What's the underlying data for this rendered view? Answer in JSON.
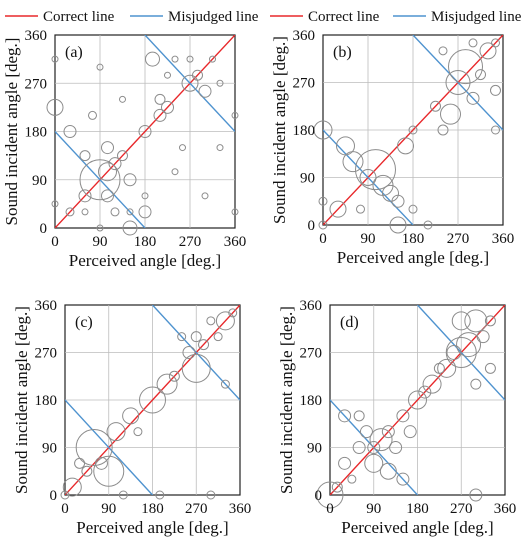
{
  "legend": {
    "correct_label": "Correct line",
    "correct_color": "#e8282b",
    "misjudged_label": "Misjudged line",
    "misjudged_color": "#4f93cf"
  },
  "chart_data": [
    {
      "panel_label": "(a)",
      "type": "scatter",
      "xlabel": "Perceived angle [deg.]",
      "ylabel": "Sound incident angle [deg.]",
      "xticks": [
        "0",
        "90",
        "180",
        "270",
        "360"
      ],
      "yticks": [
        "0",
        "90",
        "180",
        "270",
        "360"
      ],
      "xlim": [
        0,
        360
      ],
      "ylim": [
        0,
        360
      ],
      "correct_line": [
        [
          0,
          0
        ],
        [
          360,
          360
        ]
      ],
      "misjudged_lines": [
        [
          [
            0,
            180
          ],
          [
            180,
            0
          ]
        ],
        [
          [
            180,
            360
          ],
          [
            360,
            180
          ]
        ]
      ],
      "points": [
        {
          "x": 0,
          "y": 225,
          "r": 8
        },
        {
          "x": 0,
          "y": 315,
          "r": 3
        },
        {
          "x": 0,
          "y": 45,
          "r": 3
        },
        {
          "x": 30,
          "y": 180,
          "r": 6
        },
        {
          "x": 30,
          "y": 30,
          "r": 4
        },
        {
          "x": 60,
          "y": 135,
          "r": 5
        },
        {
          "x": 60,
          "y": 60,
          "r": 6
        },
        {
          "x": 75,
          "y": 210,
          "r": 4
        },
        {
          "x": 60,
          "y": 30,
          "r": 3
        },
        {
          "x": 90,
          "y": 90,
          "r": 20
        },
        {
          "x": 90,
          "y": 300,
          "r": 3
        },
        {
          "x": 90,
          "y": 0,
          "r": 3
        },
        {
          "x": 105,
          "y": 60,
          "r": 6
        },
        {
          "x": 105,
          "y": 105,
          "r": 9
        },
        {
          "x": 105,
          "y": 150,
          "r": 6
        },
        {
          "x": 120,
          "y": 120,
          "r": 6
        },
        {
          "x": 120,
          "y": 30,
          "r": 4
        },
        {
          "x": 135,
          "y": 135,
          "r": 5
        },
        {
          "x": 135,
          "y": 240,
          "r": 3
        },
        {
          "x": 150,
          "y": 90,
          "r": 6
        },
        {
          "x": 150,
          "y": 0,
          "r": 7
        },
        {
          "x": 150,
          "y": 30,
          "r": 3
        },
        {
          "x": 180,
          "y": 180,
          "r": 6
        },
        {
          "x": 180,
          "y": 60,
          "r": 3
        },
        {
          "x": 180,
          "y": 30,
          "r": 6
        },
        {
          "x": 195,
          "y": 315,
          "r": 7
        },
        {
          "x": 210,
          "y": 210,
          "r": 6
        },
        {
          "x": 210,
          "y": 240,
          "r": 5
        },
        {
          "x": 225,
          "y": 225,
          "r": 6
        },
        {
          "x": 225,
          "y": 285,
          "r": 3
        },
        {
          "x": 240,
          "y": 315,
          "r": 3
        },
        {
          "x": 240,
          "y": 105,
          "r": 3
        },
        {
          "x": 255,
          "y": 150,
          "r": 3
        },
        {
          "x": 270,
          "y": 270,
          "r": 8
        },
        {
          "x": 270,
          "y": 315,
          "r": 3
        },
        {
          "x": 285,
          "y": 285,
          "r": 5
        },
        {
          "x": 300,
          "y": 60,
          "r": 3
        },
        {
          "x": 300,
          "y": 255,
          "r": 6
        },
        {
          "x": 315,
          "y": 315,
          "r": 3
        },
        {
          "x": 330,
          "y": 150,
          "r": 3
        },
        {
          "x": 330,
          "y": 270,
          "r": 3
        },
        {
          "x": 360,
          "y": 210,
          "r": 3
        },
        {
          "x": 360,
          "y": 30,
          "r": 3
        }
      ]
    },
    {
      "panel_label": "(b)",
      "type": "scatter",
      "xlabel": "Perceived angle [deg.]",
      "ylabel": "Sound incident angle [deg.]",
      "xticks": [
        "0",
        "90",
        "180",
        "270",
        "360"
      ],
      "yticks": [
        "0",
        "90",
        "180",
        "270",
        "360"
      ],
      "xlim": [
        0,
        360
      ],
      "ylim": [
        0,
        360
      ],
      "correct_line": [
        [
          0,
          0
        ],
        [
          360,
          360
        ]
      ],
      "misjudged_lines": [
        [
          [
            0,
            180
          ],
          [
            180,
            0
          ]
        ],
        [
          [
            180,
            360
          ],
          [
            360,
            180
          ]
        ]
      ],
      "points": [
        {
          "x": 0,
          "y": 180,
          "r": 9
        },
        {
          "x": 0,
          "y": 45,
          "r": 4
        },
        {
          "x": 0,
          "y": 0,
          "r": 4
        },
        {
          "x": 30,
          "y": 30,
          "r": 8
        },
        {
          "x": 45,
          "y": 150,
          "r": 9
        },
        {
          "x": 60,
          "y": 120,
          "r": 10
        },
        {
          "x": 75,
          "y": 30,
          "r": 4
        },
        {
          "x": 90,
          "y": 90,
          "r": 8
        },
        {
          "x": 105,
          "y": 105,
          "r": 20
        },
        {
          "x": 120,
          "y": 75,
          "r": 10
        },
        {
          "x": 135,
          "y": 60,
          "r": 8
        },
        {
          "x": 150,
          "y": 45,
          "r": 6
        },
        {
          "x": 150,
          "y": 0,
          "r": 8
        },
        {
          "x": 165,
          "y": 150,
          "r": 8
        },
        {
          "x": 180,
          "y": 180,
          "r": 4
        },
        {
          "x": 180,
          "y": 30,
          "r": 4
        },
        {
          "x": 210,
          "y": 0,
          "r": 4
        },
        {
          "x": 225,
          "y": 225,
          "r": 5
        },
        {
          "x": 240,
          "y": 180,
          "r": 5
        },
        {
          "x": 240,
          "y": 330,
          "r": 4
        },
        {
          "x": 255,
          "y": 210,
          "r": 10
        },
        {
          "x": 270,
          "y": 270,
          "r": 12
        },
        {
          "x": 285,
          "y": 300,
          "r": 17
        },
        {
          "x": 300,
          "y": 240,
          "r": 6
        },
        {
          "x": 300,
          "y": 345,
          "r": 4
        },
        {
          "x": 315,
          "y": 285,
          "r": 5
        },
        {
          "x": 330,
          "y": 330,
          "r": 8
        },
        {
          "x": 345,
          "y": 255,
          "r": 5
        },
        {
          "x": 345,
          "y": 180,
          "r": 4
        },
        {
          "x": 345,
          "y": 345,
          "r": 4
        }
      ]
    },
    {
      "panel_label": "(c)",
      "type": "scatter",
      "xlabel": "Perceived angle [deg.]",
      "ylabel": "Sound incident angle [deg.]",
      "xticks": [
        "0",
        "90",
        "180",
        "270",
        "360"
      ],
      "yticks": [
        "0",
        "90",
        "180",
        "270",
        "360"
      ],
      "xlim": [
        0,
        360
      ],
      "ylim": [
        0,
        360
      ],
      "correct_line": [
        [
          0,
          0
        ],
        [
          360,
          360
        ]
      ],
      "misjudged_lines": [
        [
          [
            0,
            180
          ],
          [
            180,
            0
          ]
        ],
        [
          [
            180,
            360
          ],
          [
            360,
            180
          ]
        ]
      ],
      "points": [
        {
          "x": 0,
          "y": 0,
          "r": 4
        },
        {
          "x": 15,
          "y": 15,
          "r": 9
        },
        {
          "x": 30,
          "y": 60,
          "r": 5
        },
        {
          "x": 45,
          "y": 45,
          "r": 5
        },
        {
          "x": 60,
          "y": 90,
          "r": 18
        },
        {
          "x": 75,
          "y": 60,
          "r": 6
        },
        {
          "x": 90,
          "y": 45,
          "r": 15
        },
        {
          "x": 105,
          "y": 120,
          "r": 9
        },
        {
          "x": 120,
          "y": 0,
          "r": 4
        },
        {
          "x": 135,
          "y": 150,
          "r": 8
        },
        {
          "x": 150,
          "y": 120,
          "r": 4
        },
        {
          "x": 180,
          "y": 180,
          "r": 13
        },
        {
          "x": 195,
          "y": 0,
          "r": 4
        },
        {
          "x": 210,
          "y": 210,
          "r": 10
        },
        {
          "x": 225,
          "y": 225,
          "r": 5
        },
        {
          "x": 240,
          "y": 300,
          "r": 4
        },
        {
          "x": 255,
          "y": 270,
          "r": 6
        },
        {
          "x": 270,
          "y": 240,
          "r": 14
        },
        {
          "x": 270,
          "y": 300,
          "r": 5
        },
        {
          "x": 285,
          "y": 285,
          "r": 5
        },
        {
          "x": 300,
          "y": 330,
          "r": 4
        },
        {
          "x": 300,
          "y": 0,
          "r": 4
        },
        {
          "x": 315,
          "y": 300,
          "r": 4
        },
        {
          "x": 330,
          "y": 330,
          "r": 9
        },
        {
          "x": 345,
          "y": 345,
          "r": 4
        },
        {
          "x": 330,
          "y": 210,
          "r": 4
        }
      ]
    },
    {
      "panel_label": "(d)",
      "type": "scatter",
      "xlabel": "Perceived angle [deg.]",
      "ylabel": "Sound incident angle [deg.]",
      "xticks": [
        "0",
        "90",
        "180",
        "270",
        "360"
      ],
      "yticks": [
        "0",
        "90",
        "180",
        "270",
        "360"
      ],
      "xlim": [
        0,
        360
      ],
      "ylim": [
        0,
        360
      ],
      "correct_line": [
        [
          0,
          0
        ],
        [
          360,
          360
        ]
      ],
      "misjudged_lines": [
        [
          [
            0,
            180
          ],
          [
            180,
            0
          ]
        ],
        [
          [
            180,
            360
          ],
          [
            360,
            180
          ]
        ]
      ],
      "points": [
        {
          "x": 0,
          "y": 0,
          "r": 13
        },
        {
          "x": 15,
          "y": 15,
          "r": 5
        },
        {
          "x": 30,
          "y": 150,
          "r": 6
        },
        {
          "x": 30,
          "y": 60,
          "r": 6
        },
        {
          "x": 45,
          "y": 30,
          "r": 4
        },
        {
          "x": 60,
          "y": 90,
          "r": 6
        },
        {
          "x": 60,
          "y": 150,
          "r": 5
        },
        {
          "x": 75,
          "y": 120,
          "r": 6
        },
        {
          "x": 90,
          "y": 60,
          "r": 9
        },
        {
          "x": 90,
          "y": 90,
          "r": 6
        },
        {
          "x": 105,
          "y": 105,
          "r": 11
        },
        {
          "x": 120,
          "y": 45,
          "r": 8
        },
        {
          "x": 120,
          "y": 120,
          "r": 6
        },
        {
          "x": 135,
          "y": 90,
          "r": 6
        },
        {
          "x": 150,
          "y": 150,
          "r": 6
        },
        {
          "x": 150,
          "y": 30,
          "r": 6
        },
        {
          "x": 165,
          "y": 120,
          "r": 6
        },
        {
          "x": 180,
          "y": 180,
          "r": 9
        },
        {
          "x": 195,
          "y": 195,
          "r": 6
        },
        {
          "x": 210,
          "y": 210,
          "r": 9
        },
        {
          "x": 225,
          "y": 240,
          "r": 5
        },
        {
          "x": 240,
          "y": 240,
          "r": 9
        },
        {
          "x": 255,
          "y": 270,
          "r": 7
        },
        {
          "x": 270,
          "y": 270,
          "r": 15
        },
        {
          "x": 270,
          "y": 330,
          "r": 9
        },
        {
          "x": 285,
          "y": 285,
          "r": 12
        },
        {
          "x": 300,
          "y": 330,
          "r": 11
        },
        {
          "x": 300,
          "y": 210,
          "r": 5
        },
        {
          "x": 315,
          "y": 300,
          "r": 6
        },
        {
          "x": 330,
          "y": 330,
          "r": 5
        },
        {
          "x": 330,
          "y": 240,
          "r": 5
        },
        {
          "x": 300,
          "y": 0,
          "r": 6
        }
      ]
    }
  ]
}
